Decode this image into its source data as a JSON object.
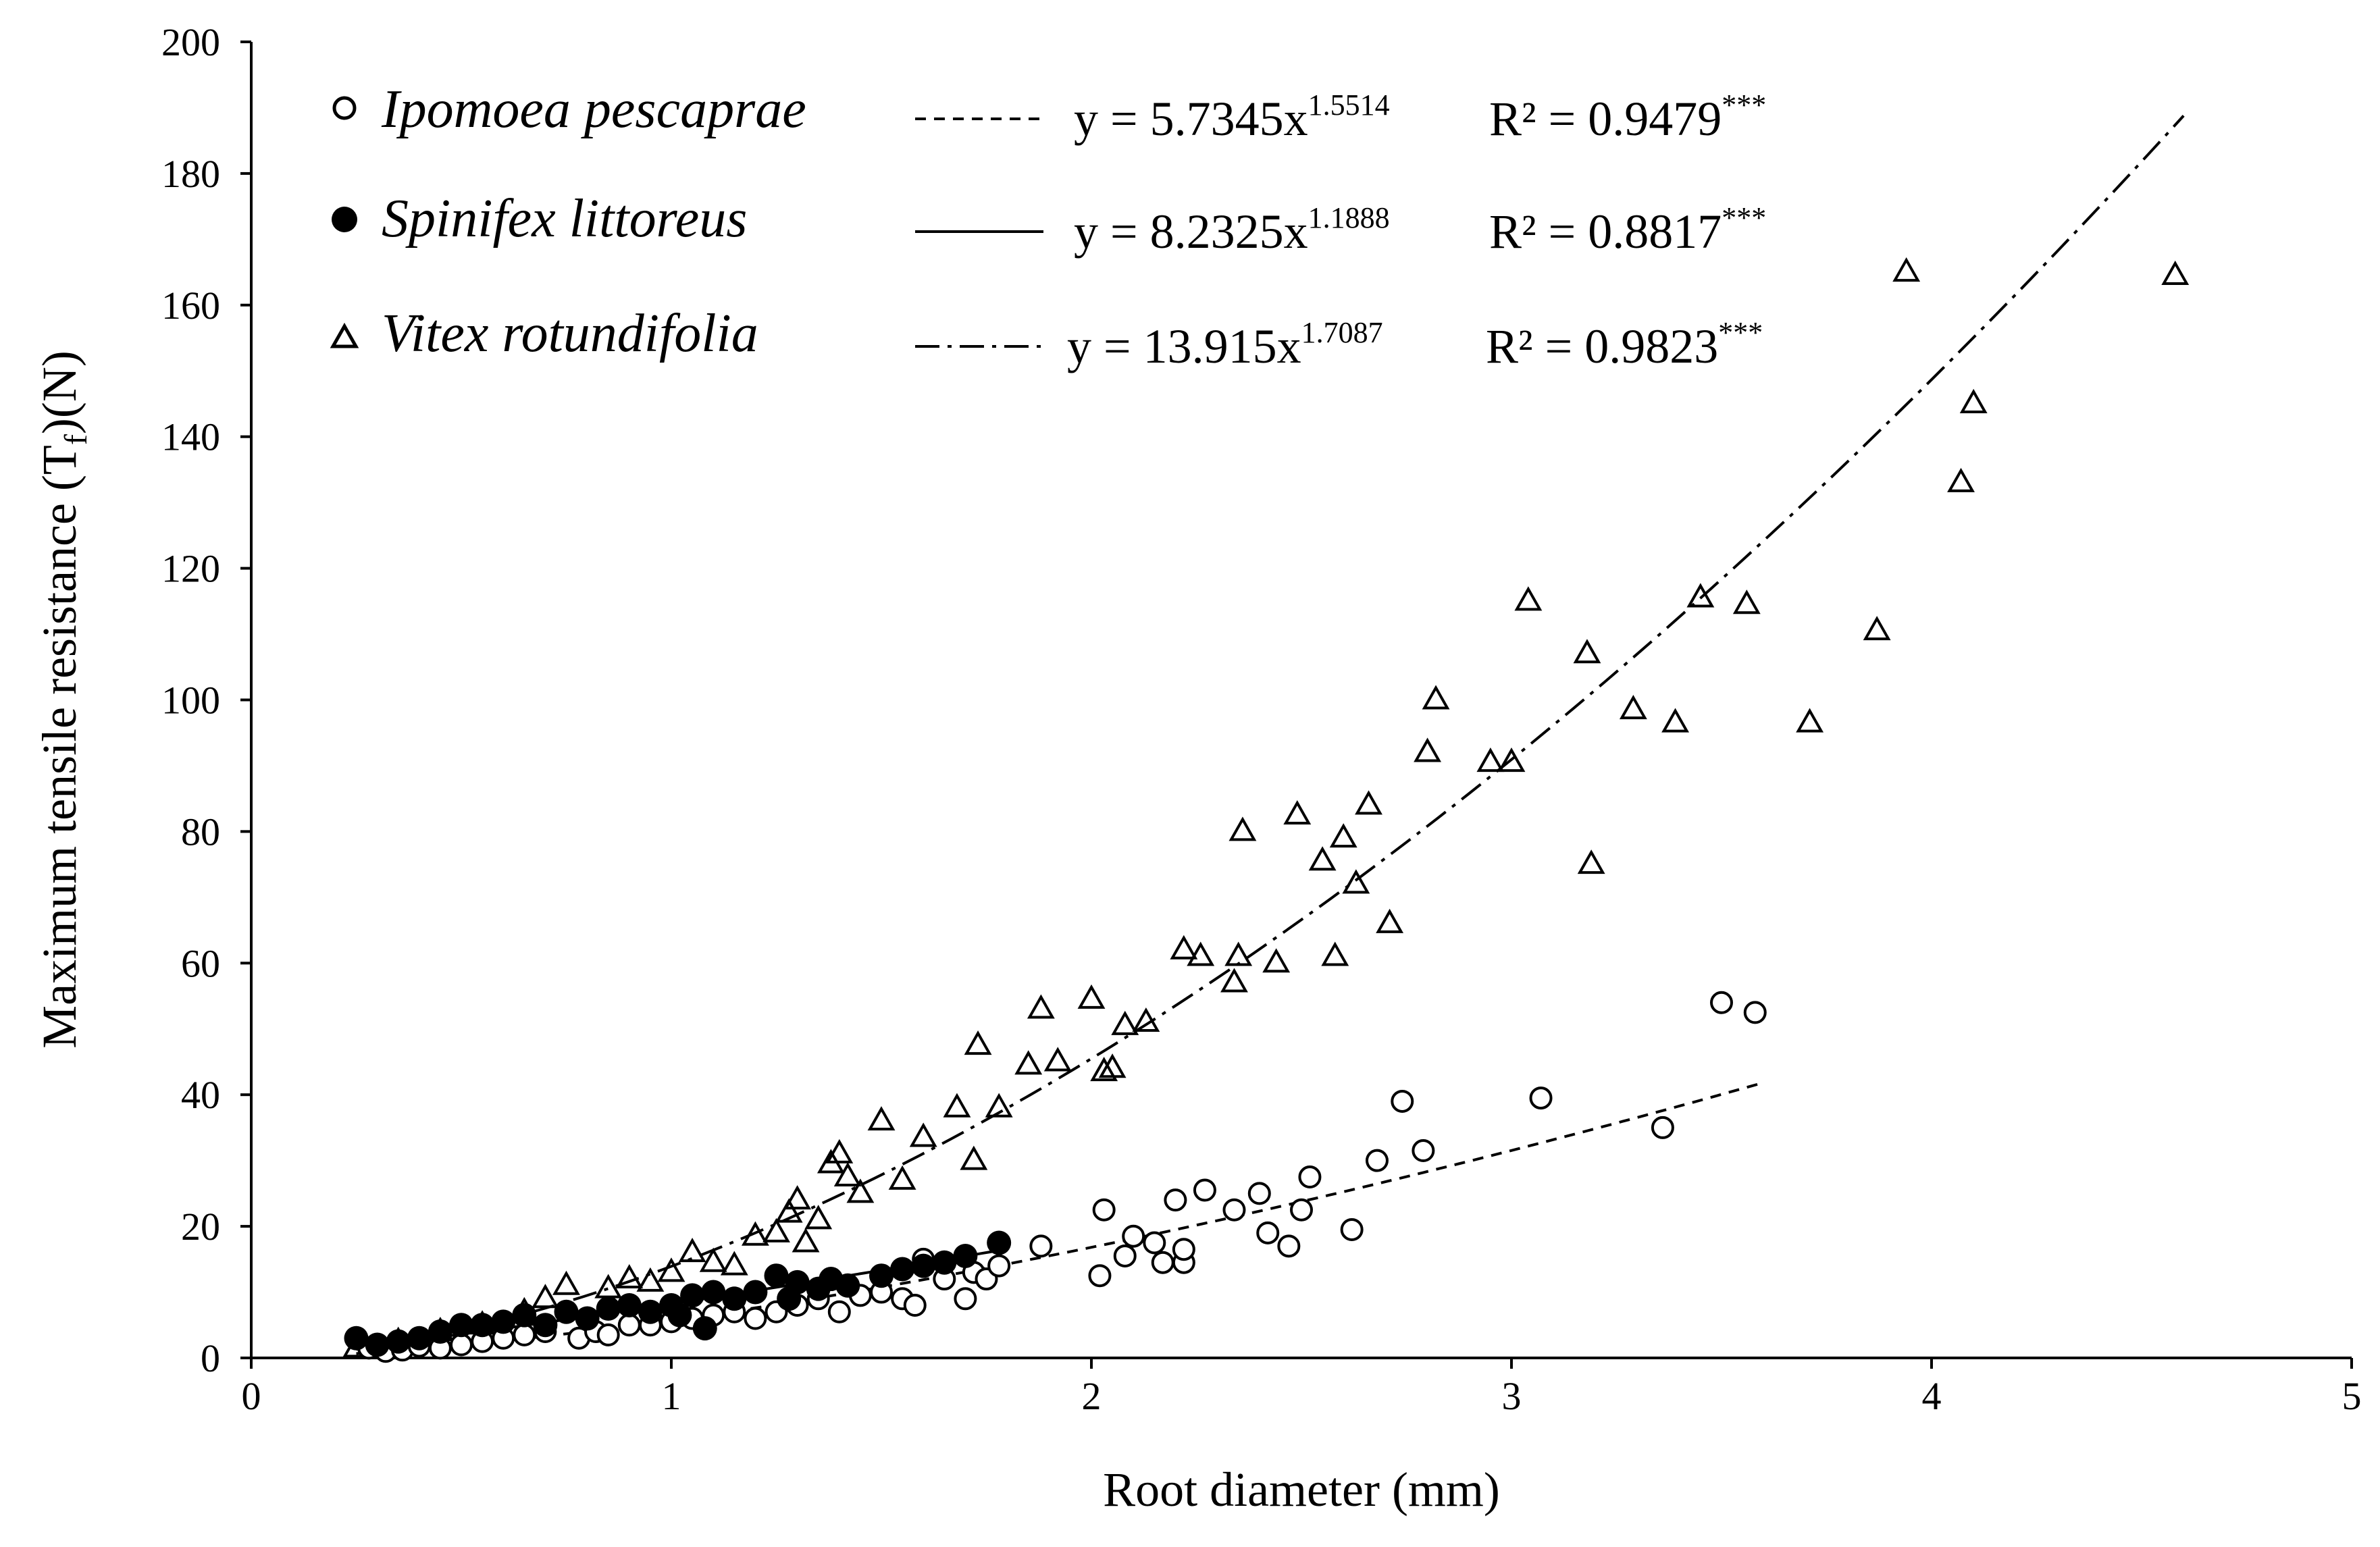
{
  "chart_data": {
    "type": "scatter",
    "title": "",
    "xlabel": "Root diameter (mm)",
    "ylabel": {
      "main": "Maximum tensile resistance (T",
      "sub": "f",
      "tail": ")(N)"
    },
    "xlim": [
      0,
      5
    ],
    "ylim": [
      0,
      200
    ],
    "xticks": [
      0,
      1,
      2,
      3,
      4,
      5
    ],
    "yticks": [
      0,
      20,
      40,
      60,
      80,
      100,
      120,
      140,
      160,
      180,
      200
    ],
    "grid": false,
    "legend_position": "top-left",
    "series": [
      {
        "name": "Ipomoea pescaprae",
        "marker": "open-circle",
        "line_style": "dashed",
        "fit": {
          "a": 5.7345,
          "b": 1.5514,
          "x_range": [
            0.25,
            3.6
          ]
        },
        "equation": {
          "base": "y = 5.7345x",
          "exp": "1.5514"
        },
        "r2": {
          "text": "R² = 0.9479",
          "sig": "***"
        },
        "points": [
          [
            0.28,
            1.5
          ],
          [
            0.32,
            1.0
          ],
          [
            0.36,
            1.2
          ],
          [
            0.4,
            1.8
          ],
          [
            0.45,
            1.5
          ],
          [
            0.5,
            2.0
          ],
          [
            0.55,
            2.5
          ],
          [
            0.6,
            3.0
          ],
          [
            0.65,
            3.5
          ],
          [
            0.7,
            4.0
          ],
          [
            0.78,
            3.0
          ],
          [
            0.82,
            4.0
          ],
          [
            0.85,
            3.5
          ],
          [
            0.9,
            5.0
          ],
          [
            0.95,
            5.0
          ],
          [
            1.0,
            5.5
          ],
          [
            1.05,
            6.0
          ],
          [
            1.1,
            6.5
          ],
          [
            1.15,
            7.0
          ],
          [
            1.2,
            6.0
          ],
          [
            1.25,
            7.0
          ],
          [
            1.3,
            8.0
          ],
          [
            1.35,
            9.0
          ],
          [
            1.4,
            7.0
          ],
          [
            1.45,
            9.5
          ],
          [
            1.5,
            10.0
          ],
          [
            1.55,
            9.0
          ],
          [
            1.58,
            8.0
          ],
          [
            1.6,
            15.0
          ],
          [
            1.65,
            12.0
          ],
          [
            1.7,
            9.0
          ],
          [
            1.72,
            13.0
          ],
          [
            1.75,
            12.0
          ],
          [
            1.78,
            14.0
          ],
          [
            1.88,
            17.0
          ],
          [
            2.02,
            12.5
          ],
          [
            2.03,
            22.5
          ],
          [
            2.08,
            15.5
          ],
          [
            2.1,
            18.5
          ],
          [
            2.15,
            17.5
          ],
          [
            2.17,
            14.5
          ],
          [
            2.2,
            24.0
          ],
          [
            2.22,
            14.5
          ],
          [
            2.22,
            16.5
          ],
          [
            2.27,
            25.5
          ],
          [
            2.34,
            22.5
          ],
          [
            2.4,
            25.0
          ],
          [
            2.42,
            19.0
          ],
          [
            2.47,
            17.0
          ],
          [
            2.5,
            22.5
          ],
          [
            2.52,
            27.5
          ],
          [
            2.62,
            19.5
          ],
          [
            2.68,
            30.0
          ],
          [
            2.74,
            39.0
          ],
          [
            2.79,
            31.5
          ],
          [
            3.07,
            39.5
          ],
          [
            3.36,
            35.0
          ],
          [
            3.5,
            54.0
          ],
          [
            3.58,
            52.5
          ]
        ]
      },
      {
        "name": "Spinifex littoreus",
        "marker": "filled-circle",
        "line_style": "solid",
        "fit": {
          "a": 8.2325,
          "b": 1.1888,
          "x_range": [
            0.25,
            1.78
          ]
        },
        "equation": {
          "base": "y = 8.2325x",
          "exp": "1.1888"
        },
        "r2": {
          "text": "R² = 0.8817",
          "sig": "***"
        },
        "points": [
          [
            0.25,
            3.0
          ],
          [
            0.3,
            2.0
          ],
          [
            0.35,
            2.5
          ],
          [
            0.4,
            3.0
          ],
          [
            0.45,
            4.0
          ],
          [
            0.5,
            5.0
          ],
          [
            0.55,
            5.0
          ],
          [
            0.6,
            5.5
          ],
          [
            0.65,
            6.5
          ],
          [
            0.7,
            5.0
          ],
          [
            0.75,
            7.0
          ],
          [
            0.8,
            6.0
          ],
          [
            0.85,
            7.5
          ],
          [
            0.9,
            8.0
          ],
          [
            0.95,
            7.0
          ],
          [
            1.0,
            8.0
          ],
          [
            1.02,
            6.5
          ],
          [
            1.05,
            9.5
          ],
          [
            1.08,
            4.5
          ],
          [
            1.1,
            10.0
          ],
          [
            1.15,
            9.0
          ],
          [
            1.2,
            10.0
          ],
          [
            1.25,
            12.5
          ],
          [
            1.28,
            9.0
          ],
          [
            1.3,
            11.5
          ],
          [
            1.35,
            10.5
          ],
          [
            1.38,
            12.0
          ],
          [
            1.42,
            11.0
          ],
          [
            1.5,
            12.5
          ],
          [
            1.55,
            13.5
          ],
          [
            1.6,
            14.0
          ],
          [
            1.65,
            14.5
          ],
          [
            1.7,
            15.5
          ],
          [
            1.78,
            17.5
          ]
        ]
      },
      {
        "name": "Vitex rotundifolia",
        "marker": "open-triangle",
        "line_style": "dash-dot",
        "fit": {
          "a": 13.915,
          "b": 1.7087,
          "x_range": [
            0.25,
            4.6
          ]
        },
        "equation": {
          "base": "y = 13.915x",
          "exp": "1.7087"
        },
        "r2": {
          "text": "R² = 0.9823",
          "sig": "***"
        },
        "points": [
          [
            0.25,
            1.5
          ],
          [
            0.35,
            2.5
          ],
          [
            0.45,
            4.0
          ],
          [
            0.55,
            5.0
          ],
          [
            0.65,
            7.0
          ],
          [
            0.7,
            9.0
          ],
          [
            0.75,
            11.0
          ],
          [
            0.85,
            10.5
          ],
          [
            0.9,
            12.0
          ],
          [
            0.95,
            11.5
          ],
          [
            1.0,
            13.0
          ],
          [
            1.05,
            16.0
          ],
          [
            1.1,
            14.5
          ],
          [
            1.15,
            14.0
          ],
          [
            1.2,
            18.5
          ],
          [
            1.25,
            19.0
          ],
          [
            1.28,
            22.0
          ],
          [
            1.3,
            24.0
          ],
          [
            1.32,
            17.5
          ],
          [
            1.35,
            21.0
          ],
          [
            1.38,
            29.5
          ],
          [
            1.4,
            31.0
          ],
          [
            1.42,
            27.5
          ],
          [
            1.45,
            25.0
          ],
          [
            1.5,
            36.0
          ],
          [
            1.55,
            27.0
          ],
          [
            1.6,
            33.5
          ],
          [
            1.68,
            38.0
          ],
          [
            1.72,
            30.0
          ],
          [
            1.73,
            47.5
          ],
          [
            1.78,
            38.0
          ],
          [
            1.85,
            44.5
          ],
          [
            1.88,
            53.0
          ],
          [
            1.92,
            45.0
          ],
          [
            2.0,
            54.5
          ],
          [
            2.03,
            43.5
          ],
          [
            2.05,
            44.0
          ],
          [
            2.08,
            50.5
          ],
          [
            2.13,
            51.0
          ],
          [
            2.22,
            62.0
          ],
          [
            2.26,
            61.0
          ],
          [
            2.34,
            57.0
          ],
          [
            2.35,
            61.0
          ],
          [
            2.36,
            80.0
          ],
          [
            2.44,
            60.0
          ],
          [
            2.49,
            82.5
          ],
          [
            2.55,
            75.5
          ],
          [
            2.58,
            61.0
          ],
          [
            2.6,
            79.0
          ],
          [
            2.63,
            72.0
          ],
          [
            2.66,
            84.0
          ],
          [
            2.71,
            66.0
          ],
          [
            2.8,
            92.0
          ],
          [
            2.82,
            100.0
          ],
          [
            2.95,
            90.5
          ],
          [
            3.0,
            90.5
          ],
          [
            3.04,
            115.0
          ],
          [
            3.18,
            107.0
          ],
          [
            3.19,
            75.0
          ],
          [
            3.29,
            98.5
          ],
          [
            3.39,
            96.5
          ],
          [
            3.45,
            115.5
          ],
          [
            3.56,
            114.5
          ],
          [
            3.71,
            96.5
          ],
          [
            3.87,
            110.5
          ],
          [
            3.94,
            165.0
          ],
          [
            4.07,
            133.0
          ],
          [
            4.1,
            145.0
          ],
          [
            4.58,
            164.5
          ]
        ]
      }
    ]
  }
}
